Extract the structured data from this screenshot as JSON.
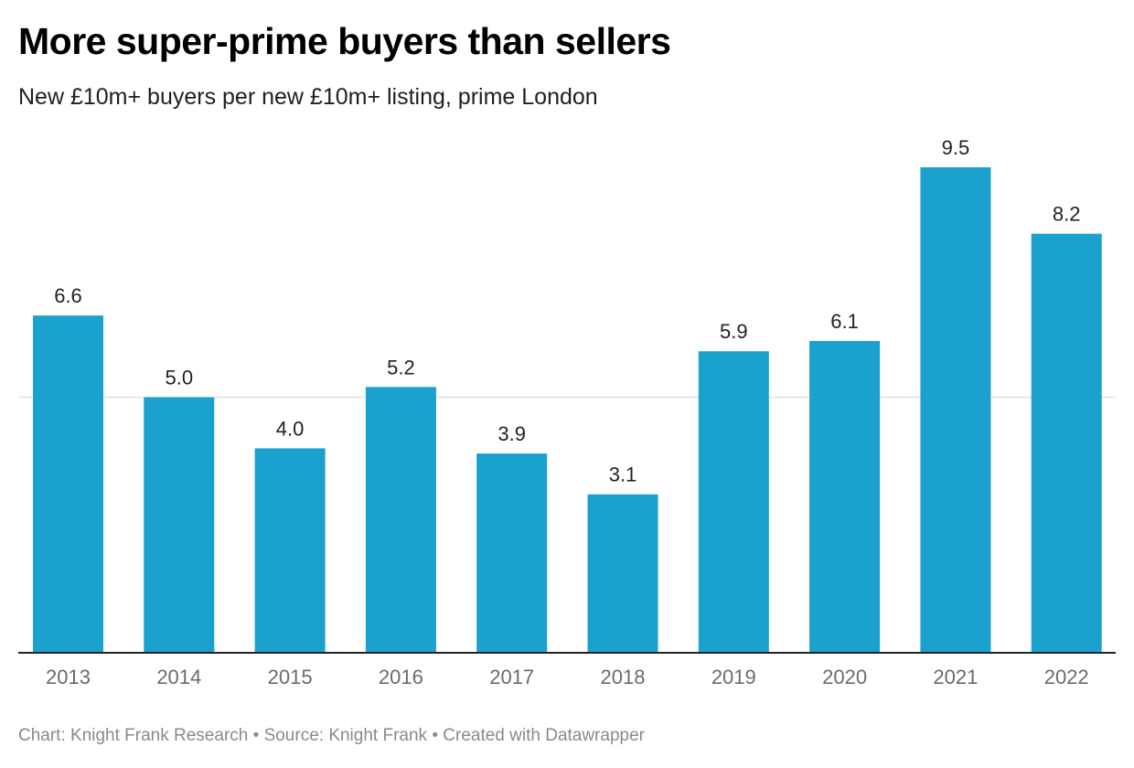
{
  "header": {
    "title": "More super-prime buyers than sellers",
    "subtitle": "New £10m+ buyers per new £10m+ listing, prime London"
  },
  "footer": {
    "chart_credit": "Chart: Knight Frank Research",
    "separator": "•",
    "source": "Source: Knight Frank",
    "tool": "Created with Datawrapper"
  },
  "colors": {
    "bar": "#1aa1cd",
    "baseline": "#222222",
    "gridline": "#e3e3e3"
  },
  "chart_data": {
    "type": "bar",
    "title": "More super-prime buyers than sellers",
    "subtitle": "New £10m+ buyers per new £10m+ listing, prime London",
    "categories": [
      "2013",
      "2014",
      "2015",
      "2016",
      "2017",
      "2018",
      "2019",
      "2020",
      "2021",
      "2022"
    ],
    "values": [
      6.6,
      5.0,
      4.0,
      5.2,
      3.9,
      3.1,
      5.9,
      6.1,
      9.5,
      8.2
    ],
    "value_labels": [
      "6.6",
      "5.0",
      "4.0",
      "5.2",
      "3.9",
      "3.1",
      "5.9",
      "6.1",
      "9.5",
      "8.2"
    ],
    "xlabel": "",
    "ylabel": "",
    "ylim": [
      0,
      10
    ],
    "gridlines_at": [
      5
    ],
    "grid": true,
    "legend": "none"
  }
}
